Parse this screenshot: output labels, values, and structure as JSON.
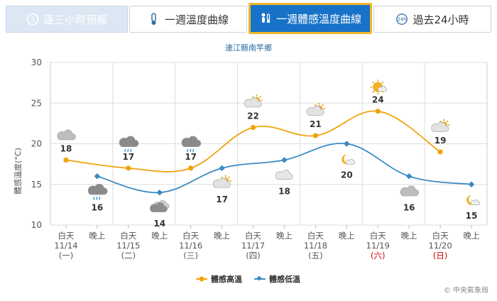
{
  "tabs": [
    {
      "label": "逐三小時預報",
      "icon": "clock-3-icon",
      "active": false
    },
    {
      "label": "一週溫度曲線",
      "icon": "thermometer-icon",
      "active": false
    },
    {
      "label": "一週體感溫度曲線",
      "icon": "feels-like-icon",
      "active": true
    },
    {
      "label": "過去24小時",
      "icon": "clock-24-icon",
      "active": false
    }
  ],
  "colors": {
    "high": "#f0a30a",
    "low": "#3b8ac4",
    "active_tab": "#1872c7",
    "active_border": "#f4b52a",
    "sunday": "#cc0000"
  },
  "chart_data": {
    "type": "line",
    "title": "連江縣南竿鄉",
    "ylabel": "體感溫度(°C)",
    "ylim": [
      10,
      30
    ],
    "yticks": [
      "10",
      "15",
      "20",
      "25",
      "30"
    ],
    "grid": true,
    "legend_position": "bottom-center",
    "x_labels": [
      {
        "period": "白天",
        "date": "11/14",
        "weekday": "(一)",
        "weekday_color": "normal"
      },
      {
        "period": "晚上"
      },
      {
        "period": "白天",
        "date": "11/15",
        "weekday": "(二)",
        "weekday_color": "normal"
      },
      {
        "period": "晚上"
      },
      {
        "period": "白天",
        "date": "11/16",
        "weekday": "(三)",
        "weekday_color": "normal"
      },
      {
        "period": "晚上"
      },
      {
        "period": "白天",
        "date": "11/17",
        "weekday": "(四)",
        "weekday_color": "normal"
      },
      {
        "period": "晚上"
      },
      {
        "period": "白天",
        "date": "11/18",
        "weekday": "(五)",
        "weekday_color": "normal"
      },
      {
        "period": "晚上"
      },
      {
        "period": "白天",
        "date": "11/19",
        "weekday": "(六)",
        "weekday_color": "red"
      },
      {
        "period": "晚上"
      },
      {
        "period": "白天",
        "date": "11/20",
        "weekday": "(日)",
        "weekday_color": "red"
      },
      {
        "period": "晚上"
      }
    ],
    "series": [
      {
        "name": "體感高溫",
        "color": "#f0a30a",
        "slots": [
          0,
          2,
          4,
          6,
          8,
          10,
          12
        ],
        "values": [
          18,
          17,
          17,
          22,
          21,
          24,
          19
        ],
        "icons": [
          "cloudy-night-icon",
          "cloud-rain-icon",
          "cloud-rain-icon",
          "partly-cloudy-day-icon",
          "partly-cloudy-day-icon",
          "sunny-icon",
          "partly-cloudy-day-icon"
        ]
      },
      {
        "name": "體感低溫",
        "color": "#3b8ac4",
        "slots": [
          1,
          3,
          5,
          7,
          9,
          11,
          13
        ],
        "values": [
          16,
          14,
          17,
          18,
          20,
          16,
          15
        ],
        "icons": [
          "cloud-rain-icon",
          "cloudy-icon",
          "partly-cloudy-day-icon",
          "partly-cloudy-night-icon",
          "moon-icon",
          "cloudy-night-icon",
          "moon-icon"
        ]
      }
    ]
  },
  "credit": "© 中央氣象局"
}
